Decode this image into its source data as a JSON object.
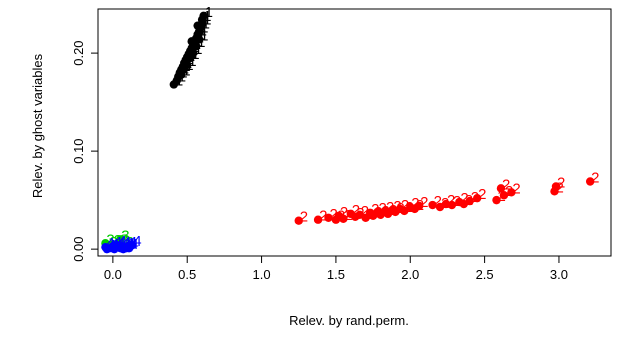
{
  "chart_data": {
    "type": "scatter",
    "xlabel": "Relev. by rand.perm.",
    "ylabel": "Relev. by ghost variables",
    "xlim": [
      -0.1,
      3.35
    ],
    "ylim": [
      -0.007,
      0.245
    ],
    "x_ticks": [
      "0.0",
      "0.5",
      "1.0",
      "1.5",
      "2.0",
      "2.5",
      "3.0"
    ],
    "y_ticks": [
      "0.00",
      "0.10",
      "0.20"
    ],
    "grid": false,
    "legend": "none",
    "series": [
      {
        "label": "1",
        "color": "#000000",
        "points": [
          [
            0.41,
            0.168
          ],
          [
            0.43,
            0.172
          ],
          [
            0.44,
            0.176
          ],
          [
            0.45,
            0.18
          ],
          [
            0.46,
            0.183
          ],
          [
            0.46,
            0.178
          ],
          [
            0.47,
            0.186
          ],
          [
            0.48,
            0.19
          ],
          [
            0.48,
            0.184
          ],
          [
            0.49,
            0.193
          ],
          [
            0.5,
            0.196
          ],
          [
            0.5,
            0.188
          ],
          [
            0.51,
            0.199
          ],
          [
            0.52,
            0.202
          ],
          [
            0.52,
            0.195
          ],
          [
            0.53,
            0.205
          ],
          [
            0.54,
            0.208
          ],
          [
            0.54,
            0.2
          ],
          [
            0.55,
            0.212
          ],
          [
            0.56,
            0.215
          ],
          [
            0.56,
            0.207
          ],
          [
            0.57,
            0.219
          ],
          [
            0.58,
            0.222
          ],
          [
            0.58,
            0.214
          ],
          [
            0.59,
            0.226
          ],
          [
            0.6,
            0.23
          ],
          [
            0.6,
            0.234
          ],
          [
            0.61,
            0.238
          ],
          [
            0.57,
            0.228
          ],
          [
            0.53,
            0.212
          ]
        ]
      },
      {
        "label": "2",
        "color": "#ff0000",
        "points": [
          [
            1.25,
            0.029
          ],
          [
            1.38,
            0.03
          ],
          [
            1.45,
            0.032
          ],
          [
            1.5,
            0.03
          ],
          [
            1.52,
            0.034
          ],
          [
            1.55,
            0.031
          ],
          [
            1.6,
            0.036
          ],
          [
            1.63,
            0.033
          ],
          [
            1.66,
            0.035
          ],
          [
            1.7,
            0.032
          ],
          [
            1.73,
            0.037
          ],
          [
            1.75,
            0.034
          ],
          [
            1.78,
            0.038
          ],
          [
            1.8,
            0.035
          ],
          [
            1.83,
            0.039
          ],
          [
            1.85,
            0.036
          ],
          [
            1.88,
            0.04
          ],
          [
            1.9,
            0.038
          ],
          [
            1.93,
            0.041
          ],
          [
            1.96,
            0.039
          ],
          [
            2.0,
            0.043
          ],
          [
            2.03,
            0.041
          ],
          [
            2.06,
            0.044
          ],
          [
            2.15,
            0.045
          ],
          [
            2.2,
            0.043
          ],
          [
            2.24,
            0.046
          ],
          [
            2.28,
            0.045
          ],
          [
            2.33,
            0.048
          ],
          [
            2.36,
            0.046
          ],
          [
            2.4,
            0.049
          ],
          [
            2.45,
            0.052
          ],
          [
            2.58,
            0.05
          ],
          [
            2.61,
            0.062
          ],
          [
            2.63,
            0.055
          ],
          [
            2.68,
            0.058
          ],
          [
            2.97,
            0.059
          ],
          [
            2.98,
            0.064
          ],
          [
            3.21,
            0.069
          ]
        ]
      },
      {
        "label": "3",
        "color": "#00cd00",
        "points": [
          [
            -0.05,
            0.006
          ],
          [
            -0.03,
            0.003
          ],
          [
            0.0,
            0.005
          ],
          [
            0.02,
            0.002
          ],
          [
            0.04,
            0.006
          ],
          [
            0.05,
            0.01
          ],
          [
            0.06,
            0.004
          ],
          [
            0.08,
            0.003
          ]
        ]
      },
      {
        "label": "4",
        "color": "#0000ff",
        "points": [
          [
            -0.05,
            0.002
          ],
          [
            -0.04,
            0.0
          ],
          [
            -0.02,
            0.001
          ],
          [
            0.0,
            0.003
          ],
          [
            0.01,
            0.0
          ],
          [
            0.02,
            0.002
          ],
          [
            0.03,
            0.004
          ],
          [
            0.05,
            0.001
          ],
          [
            0.06,
            0.003
          ],
          [
            0.07,
            0.0
          ],
          [
            0.08,
            0.002
          ],
          [
            0.09,
            0.001
          ],
          [
            0.1,
            0.003
          ],
          [
            0.11,
            0.001
          ],
          [
            0.13,
            0.004
          ]
        ]
      }
    ]
  }
}
